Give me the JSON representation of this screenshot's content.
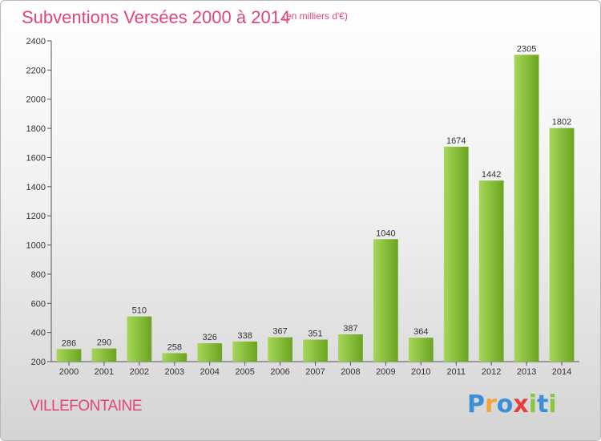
{
  "title": "Subventions Versées 2000 à 2014",
  "subtitle": "(en milliers d'€)",
  "city": "VILLEFONTAINE",
  "logo": {
    "letters": [
      "P",
      "r",
      "o",
      "x",
      "i",
      "t",
      "i"
    ],
    "colors": [
      "#3a8fd8",
      "#f2a33a",
      "#3a8fd8",
      "#e53c3c",
      "#8bc43f",
      "#3a8fd8",
      "#8bc43f"
    ]
  },
  "colors": {
    "bar_light": "#a6d65a",
    "bar_dark": "#6aa51f",
    "title": "#e0457b"
  },
  "chart_data": {
    "type": "bar",
    "categories": [
      "2000",
      "2001",
      "2002",
      "2003",
      "2004",
      "2005",
      "2006",
      "2007",
      "2008",
      "2009",
      "2010",
      "2011",
      "2012",
      "2013",
      "2014"
    ],
    "values": [
      286,
      290,
      510,
      258,
      326,
      338,
      367,
      351,
      387,
      1040,
      364,
      1674,
      1442,
      2305,
      1802
    ],
    "ylim": [
      200,
      2400
    ],
    "yticks": [
      200,
      400,
      600,
      800,
      1000,
      1200,
      1400,
      1600,
      1800,
      2000,
      2200,
      2400
    ],
    "grid": false,
    "legend": "none"
  }
}
